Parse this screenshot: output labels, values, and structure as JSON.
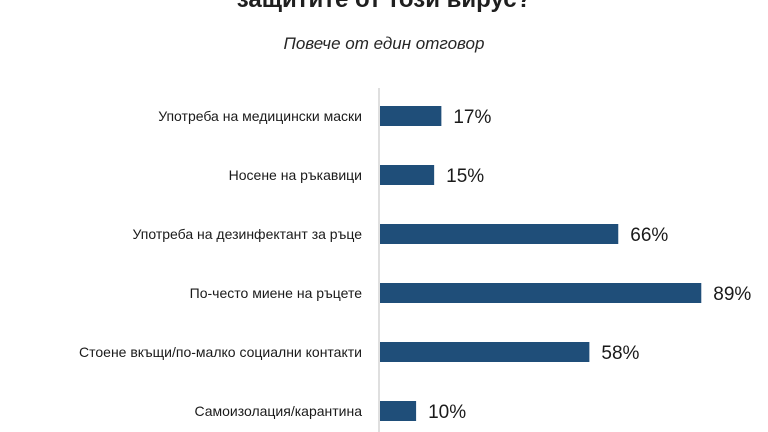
{
  "chart_data": {
    "type": "bar",
    "orientation": "horizontal",
    "title": "защитите от този вирус?",
    "subtitle": "Повече от един отговор",
    "categories": [
      "Употреба на медицински маски",
      "Носене на ръкавици",
      "Употреба на дезинфектант за ръце",
      "По-често миене на ръцете",
      "Стоене вкъщи/по-малко социални контакти",
      "Самоизолация/карантина"
    ],
    "values": [
      17,
      15,
      66,
      89,
      58,
      10
    ],
    "value_labels": [
      "17%",
      "15%",
      "66%",
      "89%",
      "58%",
      "10%"
    ],
    "xlim": [
      0,
      100
    ],
    "grid": false,
    "bar_color": "#1f4e79"
  }
}
